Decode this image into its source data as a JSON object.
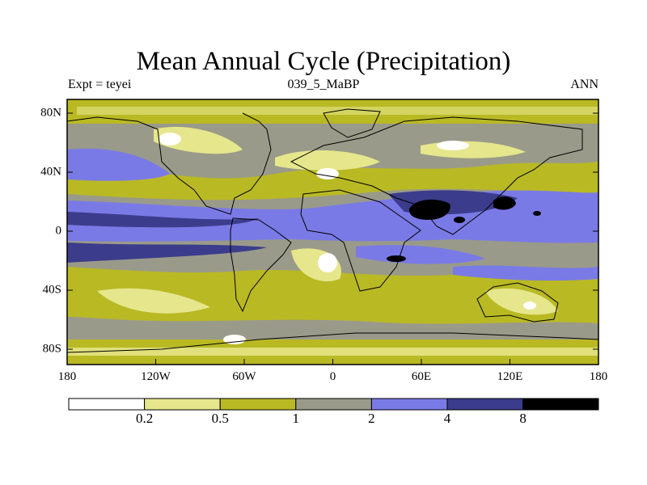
{
  "title": "Mean Annual Cycle (Precipitation)",
  "subtitle_left": "Expt = teyei",
  "subtitle_center": "039_5_MaBP",
  "subtitle_right": "ANN",
  "lat_labels": [
    "80N",
    "40N",
    "0",
    "40S",
    "80S"
  ],
  "lon_labels": [
    "180",
    "120W",
    "60W",
    "0",
    "60E",
    "120E",
    "180"
  ],
  "colorbar": {
    "labels": [
      "0.2",
      "0.5",
      "1",
      "2",
      "4",
      "8"
    ],
    "colors": [
      "#ffffff",
      "#e6e68c",
      "#b9b924",
      "#9a9a8a",
      "#7a7ae6",
      "#3c3c8c",
      "#000000"
    ]
  },
  "colors": {
    "background": "#ffffff",
    "ocean_base": "#9a9a8a"
  }
}
